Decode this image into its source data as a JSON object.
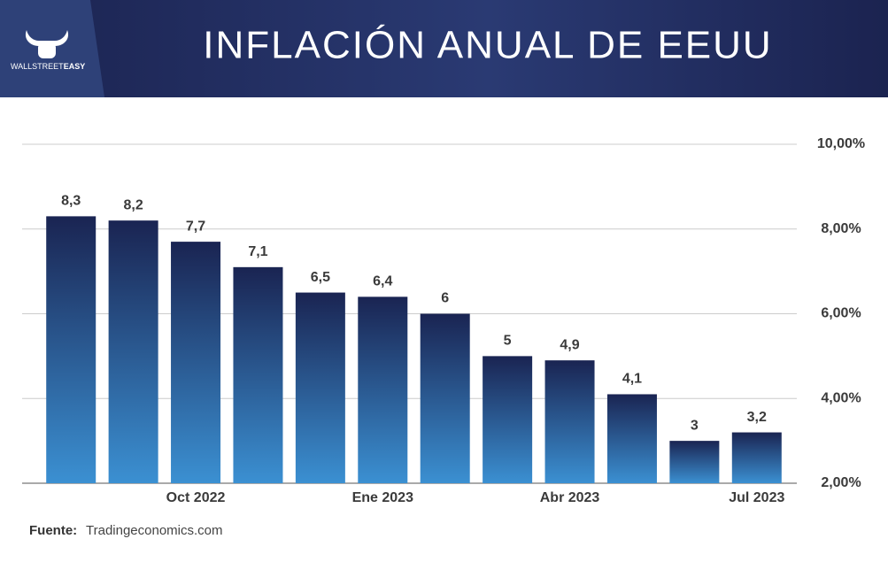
{
  "brand": {
    "light": "WALLSTREET",
    "bold": "EASY"
  },
  "chart_data": {
    "type": "bar",
    "title": "INFLACIÓN ANUAL DE EEUU",
    "categories": [
      null,
      null,
      "Oct 2022",
      null,
      null,
      "Ene 2023",
      null,
      null,
      "Abr 2023",
      null,
      null,
      "Jul 2023"
    ],
    "values": [
      8.3,
      8.2,
      7.7,
      7.1,
      6.5,
      6.4,
      6,
      5,
      4.9,
      4.1,
      3,
      3.2
    ],
    "value_labels": [
      "8,3",
      "8,2",
      "7,7",
      "7,1",
      "6,5",
      "6,4",
      "6",
      "5",
      "4,9",
      "4,1",
      "3",
      "3,2"
    ],
    "color": {
      "top": "#1a2452",
      "bottom": "#3b90d2"
    },
    "ylim": [
      2,
      10
    ],
    "yticks": [
      {
        "value": 2,
        "label": "2,00%"
      },
      {
        "value": 4,
        "label": "4,00%"
      },
      {
        "value": 6,
        "label": "6,00%"
      },
      {
        "value": 8,
        "label": "8,00%"
      },
      {
        "value": 10,
        "label": "10,00%"
      }
    ],
    "grid": true,
    "source_label": "Fuente:",
    "source": "Tradingeconomics.com"
  }
}
